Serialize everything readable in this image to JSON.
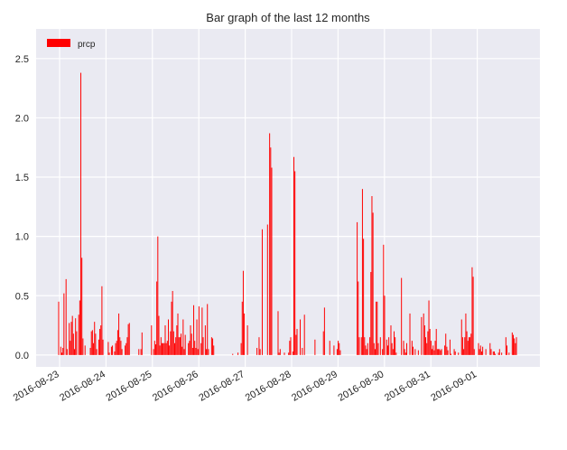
{
  "chart_data": {
    "type": "bar",
    "title": "Bar graph of the last 12 months",
    "xlabel": "",
    "ylabel": "",
    "ylim": [
      -0.1,
      2.75
    ],
    "yticks": [
      "0.0",
      "0.5",
      "1.0",
      "1.5",
      "2.0",
      "2.5"
    ],
    "ytick_values": [
      0.0,
      0.5,
      1.0,
      1.5,
      2.0,
      2.5
    ],
    "xticks": [
      "2016-08-23",
      "2016-08-24",
      "2016-08-25",
      "2016-08-26",
      "2016-08-27",
      "2016-08-28",
      "2016-08-29",
      "2016-08-30",
      "2016-08-31",
      "2016-09-01"
    ],
    "grid": true,
    "legend": "top-left",
    "series": [
      {
        "name": "prcp",
        "color": "#ff0000",
        "values": [
          0.45,
          0.0,
          0.07,
          0.02,
          0.06,
          0.52,
          0.0,
          0.64,
          0.05,
          0.0,
          0.27,
          0.12,
          0.28,
          0.33,
          0.18,
          0.05,
          0.31,
          0.2,
          0.0,
          0.34,
          0.46,
          2.38,
          0.82,
          0.14,
          0.0,
          0.08,
          0.0,
          0.0,
          0.0,
          0.0,
          0.06,
          0.2,
          0.21,
          0.1,
          0.28,
          0.18,
          0.05,
          0.0,
          0.13,
          0.22,
          0.25,
          0.58,
          0.13,
          0.0,
          0.0,
          0.0,
          0.0,
          0.11,
          0.02,
          0.0,
          0.07,
          0.08,
          0.0,
          0.03,
          0.1,
          0.12,
          0.21,
          0.35,
          0.15,
          0.12,
          0.05,
          0.0,
          0.0,
          0.08,
          0.1,
          0.15,
          0.26,
          0.27,
          0.0,
          0.0,
          0.0,
          0.0,
          0.0,
          0.0,
          0.0,
          0.0,
          0.05,
          0.0,
          0.05,
          0.19,
          0.0,
          0.0,
          0.0,
          0.0,
          0.0,
          0.0,
          0.0,
          0.0,
          0.25,
          0.0,
          0.05,
          0.12,
          0.09,
          0.62,
          1.0,
          0.33,
          0.08,
          0.15,
          0.1,
          0.1,
          0.1,
          0.25,
          0.1,
          0.12,
          0.3,
          0.08,
          0.2,
          0.45,
          0.54,
          0.2,
          0.1,
          0.15,
          0.25,
          0.35,
          0.15,
          0.15,
          0.18,
          0.07,
          0.3,
          0.05,
          0.17,
          0.0,
          0.0,
          0.1,
          0.12,
          0.25,
          0.18,
          0.06,
          0.42,
          0.12,
          0.06,
          0.3,
          0.05,
          0.41,
          0.0,
          0.1,
          0.4,
          0.15,
          0.0,
          0.25,
          0.05,
          0.43,
          0.05,
          0.0,
          0.0,
          0.15,
          0.14,
          0.08,
          0.0,
          0.0,
          0.0,
          0.0,
          0.0,
          0.0,
          0.0,
          0.0,
          0.0,
          0.0,
          0.0,
          0.0,
          0.0,
          0.0,
          0.0,
          0.0,
          0.0,
          0.01,
          0.0,
          0.0,
          0.0,
          0.0,
          0.02,
          0.0,
          0.0,
          0.1,
          0.45,
          0.71,
          0.35,
          0.0,
          0.0,
          0.25,
          0.0,
          0.0,
          0.0,
          0.0,
          0.0,
          0.0,
          0.0,
          0.0,
          0.06,
          0.0,
          0.15,
          0.05,
          0.0,
          1.06,
          0.0,
          0.0,
          0.0,
          0.0,
          1.1,
          0.0,
          1.87,
          1.75,
          1.58,
          0.0,
          0.0,
          0.0,
          0.0,
          0.0,
          0.37,
          0.02,
          0.05,
          0.0,
          0.0,
          0.0,
          0.02,
          0.0,
          0.0,
          0.0,
          0.02,
          0.12,
          0.15,
          0.0,
          0.03,
          1.67,
          1.55,
          0.17,
          0.22,
          0.0,
          0.0,
          0.3,
          0.0,
          0.06,
          0.0,
          0.34,
          0.0,
          0.0,
          0.0,
          0.0,
          0.0,
          0.0,
          0.0,
          0.0,
          0.0,
          0.13,
          0.0,
          0.0,
          0.0,
          0.0,
          0.0,
          0.0,
          0.0,
          0.2,
          0.4,
          0.0,
          0.0,
          0.0,
          0.0,
          0.12,
          0.0,
          0.0,
          0.0,
          0.08,
          0.0,
          0.0,
          0.05,
          0.12,
          0.1,
          0.04,
          0.0,
          0.0,
          0.0,
          0.0,
          0.0,
          0.0,
          0.0,
          0.0,
          0.0,
          0.0,
          0.0,
          0.0,
          0.0,
          0.0,
          0.0,
          1.12,
          0.62,
          0.15,
          0.0,
          0.15,
          1.4,
          0.98,
          0.15,
          0.08,
          0.05,
          0.1,
          0.0,
          0.15,
          0.7,
          1.34,
          1.2,
          0.1,
          0.05,
          0.45,
          0.45,
          0.1,
          0.0,
          0.15,
          0.0,
          0.05,
          0.93,
          0.5,
          0.0,
          0.13,
          0.08,
          0.15,
          0.0,
          0.25,
          0.1,
          0.05,
          0.2,
          0.15,
          0.02,
          0.0,
          0.0,
          0.0,
          0.0,
          0.65,
          0.0,
          0.12,
          0.05,
          0.02,
          0.1,
          0.0,
          0.0,
          0.35,
          0.0,
          0.12,
          0.07,
          0.0,
          0.05,
          0.0,
          0.0,
          0.04,
          0.0,
          0.0,
          0.32,
          0.0,
          0.35,
          0.25,
          0.15,
          0.1,
          0.2,
          0.46,
          0.22,
          0.12,
          0.05,
          0.08,
          0.04,
          0.12,
          0.22,
          0.05,
          0.05,
          0.05,
          0.04,
          0.05,
          0.0,
          0.0,
          0.08,
          0.18,
          0.07,
          0.04,
          0.0,
          0.13,
          0.01,
          0.0,
          0.0,
          0.05,
          0.03,
          0.0,
          0.0,
          0.02,
          0.0,
          0.0,
          0.3,
          0.15,
          0.05,
          0.15,
          0.35,
          0.2,
          0.12,
          0.15,
          0.15,
          0.18,
          0.74,
          0.66,
          0.05,
          0.0,
          0.0,
          0.0,
          0.1,
          0.05,
          0.08,
          0.03,
          0.07,
          0.0,
          0.0,
          0.05,
          0.0,
          0.0,
          0.0,
          0.1,
          0.05,
          0.0,
          0.03,
          0.03,
          0.01,
          0.0,
          0.0,
          0.02,
          0.05,
          0.0,
          0.02,
          0.0,
          0.0,
          0.0,
          0.15,
          0.08,
          0.0,
          0.02,
          0.0,
          0.0,
          0.19,
          0.17,
          0.14,
          0.1,
          0.15
        ]
      }
    ]
  }
}
